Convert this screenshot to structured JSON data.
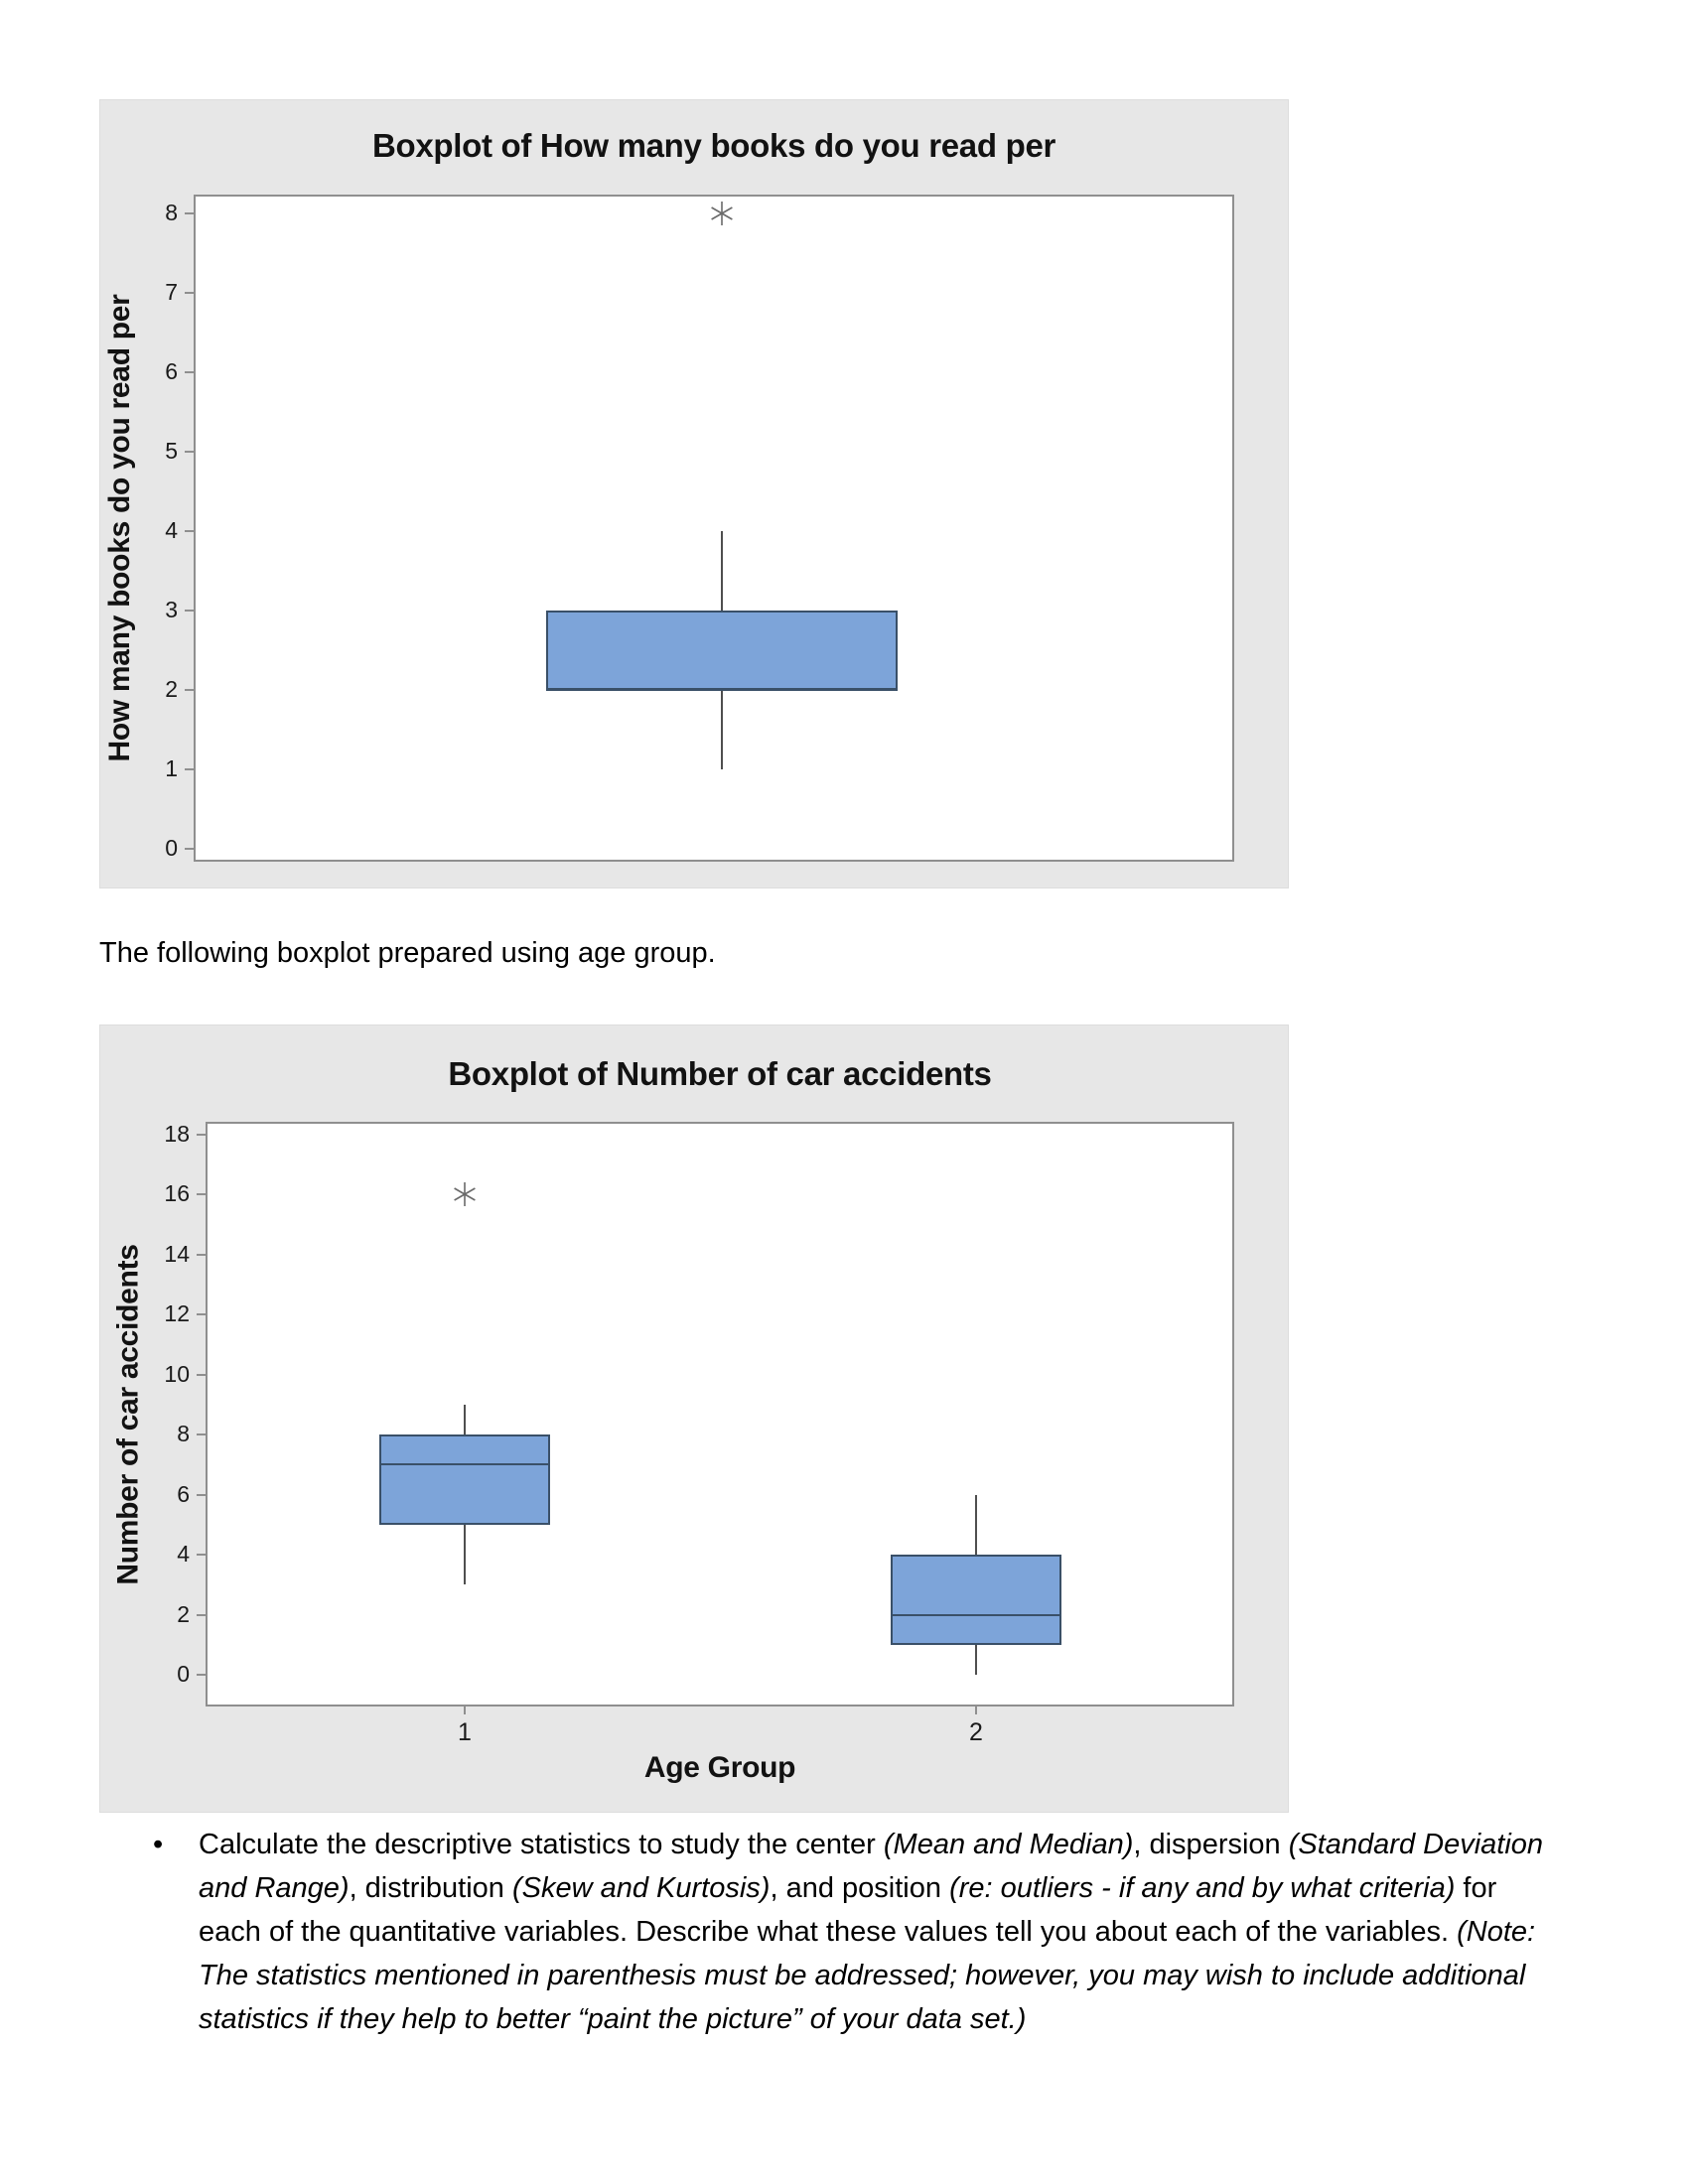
{
  "colors": {
    "panel_background": "#e7e7e7",
    "plot_background": "#ffffff",
    "plot_border": "#8f8f8f",
    "box_fill": "#7da4d9",
    "box_border": "#3a5068",
    "whisker": "#4f4f4f",
    "outlier": "#6a6a6a",
    "text": "#000000"
  },
  "page_texts": {
    "between_text": "The following boxplot prepared using age group.",
    "bullet": {
      "marker": "•",
      "segments": [
        {
          "text": "Calculate the descriptive statistics to study the center ",
          "italic": false
        },
        {
          "text": "(Mean and Median)",
          "italic": true
        },
        {
          "text": ", dispersion ",
          "italic": false
        },
        {
          "text": "(Standard Deviation and Range)",
          "italic": true
        },
        {
          "text": ", distribution ",
          "italic": false
        },
        {
          "text": "(Skew and Kurtosis)",
          "italic": true
        },
        {
          "text": ", and position ",
          "italic": false
        },
        {
          "text": "(re: outliers - if any and by what criteria)",
          "italic": true
        },
        {
          "text": " for each of the quantitative variables. Describe what these values tell you about each of the variables. ",
          "italic": false
        },
        {
          "text": "(Note: The statistics mentioned in parenthesis must be addressed; however, you may wish to include additional statistics if they help to better “paint the picture” of your data set.)",
          "italic": true
        }
      ]
    }
  },
  "chart_data": [
    {
      "type": "boxplot",
      "title": "Boxplot of How many books do you read per",
      "ylabel": "How many books do you read per",
      "xlabel": "",
      "categories": [
        ""
      ],
      "y_ticks": [
        0,
        1,
        2,
        3,
        4,
        5,
        6,
        7,
        8
      ],
      "ylim": [
        0,
        8
      ],
      "grid": false,
      "legend": "none",
      "series": [
        {
          "category": "",
          "whisker_low": 1,
          "q1": 2,
          "median": 2,
          "q3": 3,
          "whisker_high": 4,
          "outliers": [
            8
          ]
        }
      ]
    },
    {
      "type": "boxplot",
      "title": "Boxplot of Number of car accidents",
      "ylabel": "Number of car accidents",
      "xlabel": "Age Group",
      "categories": [
        "1",
        "2"
      ],
      "y_ticks": [
        0,
        2,
        4,
        6,
        8,
        10,
        12,
        14,
        16,
        18
      ],
      "ylim": [
        0,
        18
      ],
      "grid": false,
      "legend": "none",
      "series": [
        {
          "category": "1",
          "whisker_low": 3,
          "q1": 5,
          "median": 7,
          "q3": 8,
          "whisker_high": 9,
          "outliers": [
            16
          ]
        },
        {
          "category": "2",
          "whisker_low": 0,
          "q1": 1,
          "median": 2,
          "q3": 4,
          "whisker_high": 6,
          "outliers": []
        }
      ]
    }
  ]
}
